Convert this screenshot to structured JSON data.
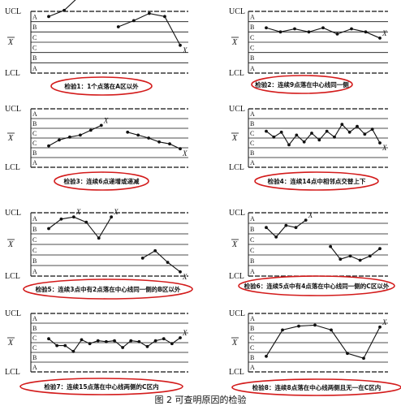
{
  "figure_title": "图 2   可查明原因的检验",
  "labels": {
    "ucl": "UCL",
    "lcl": "LCL",
    "center": "X",
    "zones": [
      "A",
      "B",
      "C",
      "C",
      "B",
      "A"
    ],
    "outlier_mark": "X"
  },
  "tests": [
    {
      "id": "test-1",
      "caption": "检验1：1个点落在A区以外",
      "groups": [
        [
          [
            2.5,
            2
          ],
          [
            3.1,
            1.5
          ],
          [
            4.5,
            -0.2
          ]
        ],
        [
          [
            1.5,
            1.7
          ],
          [
            2.1,
            2.3
          ],
          [
            2.8,
            0.9
          ],
          [
            2.5,
            0
          ],
          [
            -0.3,
            -0.3
          ]
        ]
      ],
      "outliers": [
        [
          4.5,
          -0.2
        ],
        [
          -0.3,
          -0.3
        ]
      ]
    },
    {
      "id": "test-2",
      "caption": "检验2：连续9点落在中心线同一侧",
      "groups": [
        [
          [
            1.4,
            2
          ],
          [
            1.0,
            2
          ],
          [
            1.3,
            2
          ],
          [
            1.0,
            2
          ],
          [
            1.4,
            2
          ],
          [
            0.8,
            2
          ],
          [
            1.3,
            2
          ],
          [
            1.0,
            2
          ],
          [
            0.4,
            2
          ]
        ]
      ],
      "outliers": [
        [
          0.4,
          2
        ]
      ]
    },
    {
      "id": "test-3",
      "caption": "检验3：连续6点递增或递减",
      "groups": [
        [
          [
            -0.8,
            2
          ],
          [
            -0.2,
            2
          ],
          [
            0.1,
            2
          ],
          [
            0.3,
            2
          ],
          [
            0.8,
            2
          ],
          [
            1.3,
            2
          ]
        ],
        [
          [
            0.6,
            2
          ],
          [
            0.3,
            2
          ],
          [
            0.0,
            2
          ],
          [
            -0.4,
            2
          ],
          [
            -0.6,
            2
          ],
          [
            -1.1,
            2
          ]
        ]
      ],
      "outliers": [
        [
          1.3,
          2
        ],
        [
          -1.1,
          2
        ]
      ]
    },
    {
      "id": "test-4",
      "caption": "检验4：连续14点中相邻点交替上下",
      "groups": [
        [
          [
            0.7,
            2
          ],
          [
            0.1,
            2
          ],
          [
            0.6,
            2
          ],
          [
            -0.7,
            2
          ],
          [
            0.3,
            2
          ],
          [
            -0.4,
            2
          ],
          [
            0.5,
            2
          ],
          [
            -0.2,
            2
          ],
          [
            0.7,
            2
          ],
          [
            0.1,
            2
          ],
          [
            1.4,
            2
          ],
          [
            0.6,
            2
          ],
          [
            1.2,
            2
          ],
          [
            0.4,
            2
          ],
          [
            0.9,
            2
          ],
          [
            -0.5,
            2
          ]
        ]
      ],
      "outliers": [
        [
          -0.5,
          2
        ]
      ]
    },
    {
      "id": "test-5",
      "caption": "检验5：连续3点中有2点落在中心线同一侧的B区以外",
      "groups": [
        [
          [
            1.5,
            2
          ],
          [
            2.4,
            2
          ],
          [
            2.6,
            2
          ],
          [
            2.1,
            2
          ],
          [
            0.6,
            2
          ],
          [
            2.6,
            2
          ]
        ],
        [
          [
            -1.3,
            2
          ],
          [
            -0.6,
            2
          ],
          [
            -1.7,
            2
          ],
          [
            -2.6,
            2
          ]
        ]
      ],
      "outliers": [
        [
          2.6,
          2
        ],
        [
          2.6,
          2
        ],
        [
          -2.6,
          2
        ]
      ]
    },
    {
      "id": "test-6",
      "caption": "检验6：连续5点中有4点落在中心线同一侧的C区以外",
      "groups": [
        [
          [
            1.6,
            2
          ],
          [
            0.7,
            2
          ],
          [
            1.8,
            2
          ],
          [
            1.6,
            2
          ],
          [
            2.3,
            2
          ]
        ],
        [
          [
            -0.2,
            2
          ],
          [
            -1.4,
            2
          ],
          [
            -1.1,
            2
          ],
          [
            -1.5,
            2
          ],
          [
            -1.1,
            2
          ],
          [
            -0.4,
            2
          ]
        ]
      ],
      "outliers": [
        [
          2.3,
          2
        ],
        [
          -1.5,
          2
        ]
      ]
    },
    {
      "id": "test-7",
      "caption": "检验7：连续15点落在中心线两侧的C区内",
      "groups": [
        [
          [
            0.4,
            2
          ],
          [
            -0.3,
            2
          ],
          [
            -0.3,
            2
          ],
          [
            -0.9,
            2
          ],
          [
            0.3,
            2
          ],
          [
            -0.1,
            2
          ],
          [
            0.2,
            2
          ],
          [
            0.1,
            2
          ],
          [
            0.2,
            2
          ],
          [
            -0.5,
            2
          ],
          [
            0.2,
            2
          ],
          [
            0.1,
            2
          ],
          [
            -0.4,
            2
          ],
          [
            0.2,
            2
          ],
          [
            0.4,
            2
          ],
          [
            -0.1,
            2
          ],
          [
            0.5,
            2
          ]
        ]
      ],
      "outliers": [
        [
          0.5,
          2
        ]
      ]
    },
    {
      "id": "test-8",
      "caption": "检验8：连续8点落在中心线两侧且无一在C区内",
      "groups": [
        [
          [
            -1.4,
            2
          ],
          [
            1.3,
            2
          ],
          [
            1.7,
            2
          ],
          [
            1.8,
            2
          ],
          [
            1.3,
            2
          ],
          [
            -1.1,
            2
          ],
          [
            -1.6,
            2
          ],
          [
            1.6,
            2
          ]
        ]
      ],
      "outliers": [
        [
          1.6,
          2
        ]
      ]
    }
  ]
}
